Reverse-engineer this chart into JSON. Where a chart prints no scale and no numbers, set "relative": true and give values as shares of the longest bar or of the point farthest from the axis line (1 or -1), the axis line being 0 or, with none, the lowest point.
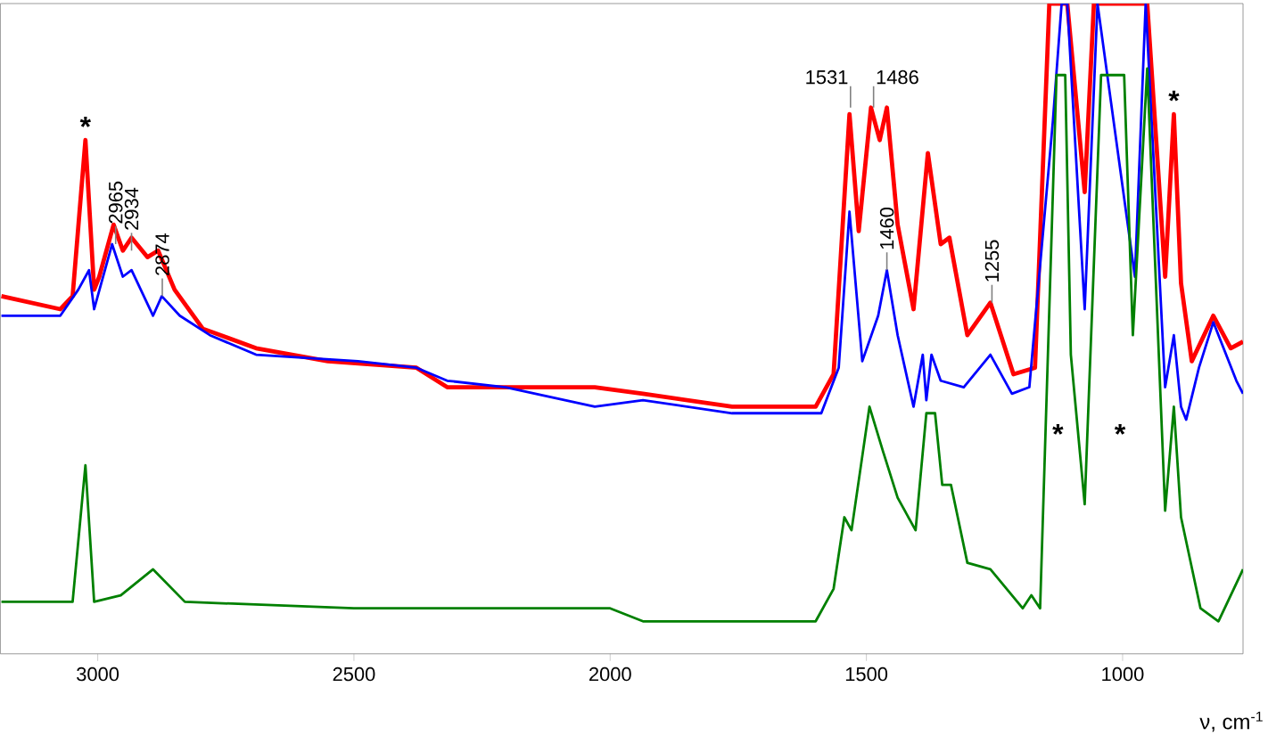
{
  "chart_data": {
    "type": "line",
    "relative": true,
    "xlabel": "ν, cm$^{-1}$",
    "xlim": [
      3190,
      765
    ],
    "xticks": [
      3000,
      2500,
      2000,
      1500,
      1000
    ],
    "grid": false,
    "tick_labels": "x",
    "line_style": "solid",
    "marker": "none",
    "series": [
      {
        "color": "#ff0000",
        "x": [
          3188,
          3073,
          3049,
          3024,
          3007,
          2997,
          2969,
          2951,
          2934,
          2903,
          2882,
          2850,
          2795,
          2691,
          2551,
          2378,
          2318,
          2169,
          2030,
          1936,
          1762,
          1599,
          1564,
          1533,
          1515,
          1491,
          1474,
          1460,
          1439,
          1408,
          1380,
          1355,
          1338,
          1303,
          1258,
          1213,
          1171,
          1143,
          1108,
          1074,
          1056,
          952,
          917,
          900,
          886,
          865,
          823,
          789,
          765
        ],
        "values": [
          0.55,
          0.53,
          0.55,
          0.79,
          0.56,
          0.58,
          0.66,
          0.62,
          0.64,
          0.61,
          0.62,
          0.56,
          0.5,
          0.47,
          0.45,
          0.44,
          0.41,
          0.41,
          0.41,
          0.4,
          0.38,
          0.38,
          0.43,
          0.83,
          0.65,
          0.84,
          0.79,
          0.84,
          0.66,
          0.53,
          0.77,
          0.63,
          0.64,
          0.49,
          0.54,
          0.43,
          0.44,
          1.0,
          1.0,
          0.71,
          1.0,
          1.0,
          0.58,
          0.83,
          0.57,
          0.45,
          0.52,
          0.47,
          0.48
        ]
      },
      {
        "color": "#0000ff",
        "x": [
          3188,
          3073,
          3038,
          3017,
          3007,
          2972,
          2951,
          2934,
          2892,
          2875,
          2840,
          2781,
          2691,
          2492,
          2378,
          2318,
          2204,
          2030,
          1936,
          1762,
          1588,
          1554,
          1533,
          1508,
          1477,
          1460,
          1439,
          1408,
          1390,
          1383,
          1373,
          1355,
          1310,
          1258,
          1216,
          1182,
          1136,
          1119,
          1108,
          1074,
          1049,
          976,
          955,
          917,
          900,
          886,
          876,
          851,
          823,
          778,
          765
        ],
        "values": [
          0.52,
          0.52,
          0.56,
          0.59,
          0.53,
          0.63,
          0.58,
          0.59,
          0.52,
          0.55,
          0.52,
          0.49,
          0.46,
          0.45,
          0.44,
          0.42,
          0.41,
          0.38,
          0.39,
          0.37,
          0.37,
          0.44,
          0.68,
          0.45,
          0.52,
          0.59,
          0.49,
          0.38,
          0.46,
          0.39,
          0.46,
          0.42,
          0.41,
          0.46,
          0.4,
          0.41,
          0.82,
          1.0,
          1.0,
          0.53,
          1.0,
          0.58,
          1.0,
          0.41,
          0.49,
          0.38,
          0.36,
          0.44,
          0.51,
          0.42,
          0.4
        ]
      },
      {
        "color": "#008000",
        "x": [
          3188,
          3049,
          3024,
          3007,
          2955,
          2892,
          2830,
          2500,
          2000,
          1936,
          1599,
          1564,
          1543,
          1529,
          1494,
          1467,
          1439,
          1404,
          1383,
          1366,
          1352,
          1335,
          1303,
          1258,
          1195,
          1178,
          1161,
          1129,
          1112,
          1101,
          1074,
          1042,
          997,
          980,
          952,
          917,
          900,
          886,
          848,
          813,
          765
        ],
        "values": [
          0.08,
          0.08,
          0.29,
          0.08,
          0.09,
          0.13,
          0.08,
          0.07,
          0.07,
          0.05,
          0.05,
          0.1,
          0.21,
          0.19,
          0.38,
          0.31,
          0.24,
          0.19,
          0.37,
          0.37,
          0.26,
          0.26,
          0.14,
          0.13,
          0.07,
          0.09,
          0.07,
          0.89,
          0.89,
          0.46,
          0.23,
          0.89,
          0.89,
          0.49,
          0.9,
          0.22,
          0.38,
          0.21,
          0.07,
          0.05,
          0.13
        ]
      }
    ],
    "annotations": [
      {
        "text": "*",
        "x": 3024,
        "y": 0.79
      },
      {
        "text": "2965",
        "x": 2965,
        "y": 0.63
      },
      {
        "text": "2934",
        "x": 2934,
        "y": 0.62
      },
      {
        "text": "2874",
        "x": 2874,
        "y": 0.55
      },
      {
        "text": "1531",
        "x": 1531,
        "y": 0.84
      },
      {
        "text": "1486",
        "x": 1486,
        "y": 0.84
      },
      {
        "text": "1460",
        "x": 1460,
        "y": 0.59
      },
      {
        "text": "1255",
        "x": 1255,
        "y": 0.54
      },
      "*",
      "*",
      {
        "text": "*",
        "x": 900,
        "y": 0.83
      }
    ]
  }
}
